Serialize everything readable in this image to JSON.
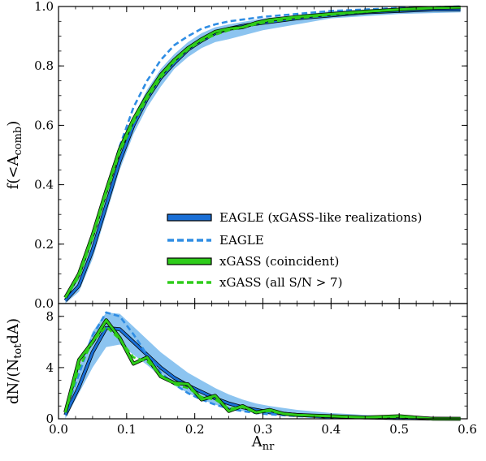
{
  "chart_data": [
    {
      "type": "line",
      "panel": "top",
      "title": "",
      "xlabel": "",
      "ylabel": "f(<A",
      "ylabel_sub": "comb",
      "ylabel_close": ")",
      "xlim": [
        0.0,
        0.6
      ],
      "ylim": [
        0.0,
        1.0
      ],
      "xticks": [
        "0.0",
        "0.1",
        "0.2",
        "0.3",
        "0.4",
        "0.5",
        "0.6"
      ],
      "yticks": [
        "0.0",
        "0.2",
        "0.4",
        "0.6",
        "0.8",
        "1.0"
      ],
      "legend_position": "lower-right",
      "band": {
        "name": "EAGLE (xGASS-like realizations)",
        "color": "#8cc4f0",
        "x": [
          0.01,
          0.03,
          0.05,
          0.07,
          0.09,
          0.11,
          0.13,
          0.15,
          0.17,
          0.19,
          0.21,
          0.23,
          0.25,
          0.3,
          0.35,
          0.4,
          0.5,
          0.59
        ],
        "lower": [
          0.0,
          0.04,
          0.15,
          0.3,
          0.45,
          0.57,
          0.66,
          0.73,
          0.79,
          0.83,
          0.86,
          0.88,
          0.89,
          0.92,
          0.94,
          0.96,
          0.975,
          0.98
        ],
        "upper": [
          0.03,
          0.09,
          0.22,
          0.37,
          0.52,
          0.63,
          0.72,
          0.79,
          0.84,
          0.88,
          0.91,
          0.93,
          0.94,
          0.96,
          0.97,
          0.985,
          0.995,
          1.0
        ]
      },
      "series": [
        {
          "name": "EAGLE (xGASS-like realizations)",
          "color": "#1a6fd6",
          "style": "solid",
          "x": [
            0.01,
            0.03,
            0.05,
            0.07,
            0.09,
            0.11,
            0.13,
            0.15,
            0.17,
            0.19,
            0.21,
            0.23,
            0.25,
            0.27,
            0.3,
            0.35,
            0.4,
            0.45,
            0.5,
            0.55,
            0.59
          ],
          "y": [
            0.01,
            0.06,
            0.18,
            0.33,
            0.48,
            0.6,
            0.69,
            0.76,
            0.81,
            0.855,
            0.885,
            0.91,
            0.925,
            0.935,
            0.945,
            0.96,
            0.97,
            0.98,
            0.985,
            0.99,
            0.99
          ]
        },
        {
          "name": "EAGLE",
          "color": "#2f8de4",
          "style": "dashed",
          "x": [
            0.01,
            0.03,
            0.05,
            0.07,
            0.09,
            0.11,
            0.13,
            0.15,
            0.17,
            0.19,
            0.21,
            0.23,
            0.25,
            0.3,
            0.35,
            0.4,
            0.45,
            0.5,
            0.55,
            0.59
          ],
          "y": [
            0.02,
            0.1,
            0.22,
            0.38,
            0.53,
            0.66,
            0.75,
            0.82,
            0.87,
            0.9,
            0.925,
            0.94,
            0.95,
            0.965,
            0.975,
            0.985,
            0.99,
            0.995,
            0.998,
            1.0
          ]
        },
        {
          "name": "xGASS (coincident)",
          "color": "#2ecc1a",
          "style": "solid",
          "x": [
            0.01,
            0.03,
            0.05,
            0.07,
            0.09,
            0.11,
            0.13,
            0.15,
            0.17,
            0.19,
            0.21,
            0.23,
            0.25,
            0.27,
            0.29,
            0.31,
            0.35,
            0.4,
            0.45,
            0.5,
            0.55,
            0.59
          ],
          "y": [
            0.02,
            0.1,
            0.23,
            0.38,
            0.52,
            0.62,
            0.7,
            0.77,
            0.82,
            0.86,
            0.89,
            0.915,
            0.925,
            0.93,
            0.945,
            0.955,
            0.965,
            0.975,
            0.983,
            0.99,
            0.995,
            0.997
          ]
        },
        {
          "name": "xGASS (all S/N > 7)",
          "color": "#2ecc1a",
          "style": "dashed",
          "x": [
            0.01,
            0.03,
            0.05,
            0.07,
            0.09,
            0.11,
            0.13,
            0.15,
            0.17,
            0.19,
            0.21,
            0.23,
            0.25,
            0.27,
            0.3,
            0.35,
            0.4,
            0.45,
            0.5,
            0.55,
            0.59
          ],
          "y": [
            0.02,
            0.09,
            0.22,
            0.37,
            0.51,
            0.61,
            0.69,
            0.76,
            0.815,
            0.855,
            0.885,
            0.905,
            0.92,
            0.93,
            0.945,
            0.96,
            0.972,
            0.982,
            0.99,
            0.995,
            0.997
          ]
        }
      ]
    },
    {
      "type": "line",
      "panel": "bottom",
      "title": "",
      "xlabel": "A",
      "xlabel_sub": "nr",
      "ylabel": "dN/(N",
      "ylabel_sub": "tot",
      "ylabel_close": "dA)",
      "xlim": [
        0.0,
        0.6
      ],
      "ylim": [
        0.0,
        9.0
      ],
      "xticks": [
        "0.0",
        "0.1",
        "0.2",
        "0.3",
        "0.4",
        "0.5",
        "0.6"
      ],
      "yticks": [
        "0",
        "4",
        "8"
      ],
      "band": {
        "color": "#8cc4f0",
        "x": [
          0.01,
          0.03,
          0.05,
          0.07,
          0.09,
          0.11,
          0.13,
          0.15,
          0.17,
          0.19,
          0.21,
          0.23,
          0.25,
          0.27,
          0.29,
          0.31,
          0.35,
          0.4,
          0.45,
          0.5,
          0.55,
          0.59
        ],
        "lower": [
          0.0,
          2.0,
          4.0,
          5.6,
          5.8,
          5.0,
          4.2,
          3.3,
          2.6,
          2.0,
          1.5,
          1.1,
          0.8,
          0.6,
          0.45,
          0.35,
          0.2,
          0.1,
          0.05,
          0.0,
          0.0,
          0.0
        ],
        "upper": [
          1.0,
          4.0,
          6.8,
          8.3,
          8.2,
          7.2,
          6.2,
          5.2,
          4.4,
          3.6,
          3.0,
          2.4,
          1.9,
          1.5,
          1.2,
          1.0,
          0.7,
          0.45,
          0.3,
          0.2,
          0.1,
          0.05
        ]
      },
      "series": [
        {
          "name": "EAGLE (xGASS-like realizations)",
          "color": "#1a6fd6",
          "style": "solid",
          "x": [
            0.01,
            0.03,
            0.05,
            0.07,
            0.09,
            0.11,
            0.13,
            0.15,
            0.17,
            0.19,
            0.21,
            0.23,
            0.25,
            0.27,
            0.29,
            0.31,
            0.35,
            0.4,
            0.45,
            0.5,
            0.55,
            0.59
          ],
          "y": [
            0.3,
            2.5,
            5.2,
            7.1,
            7.0,
            6.0,
            5.0,
            4.0,
            3.2,
            2.6,
            2.1,
            1.6,
            1.2,
            0.9,
            0.7,
            0.5,
            0.3,
            0.15,
            0.1,
            0.05,
            0.02,
            0.0
          ]
        },
        {
          "name": "EAGLE",
          "color": "#2f8de4",
          "style": "dashed",
          "x": [
            0.01,
            0.03,
            0.05,
            0.07,
            0.09,
            0.11,
            0.13,
            0.15,
            0.17,
            0.19,
            0.21,
            0.23,
            0.25,
            0.27,
            0.29,
            0.31,
            0.35,
            0.4,
            0.45,
            0.5,
            0.55,
            0.59
          ],
          "y": [
            0.5,
            3.5,
            6.5,
            8.3,
            8.0,
            6.6,
            5.0,
            3.6,
            2.7,
            2.0,
            1.5,
            1.1,
            0.8,
            0.6,
            0.45,
            0.35,
            0.2,
            0.1,
            0.05,
            0.03,
            0.01,
            0.0
          ]
        },
        {
          "name": "xGASS (coincident)",
          "color": "#2ecc1a",
          "style": "solid",
          "x": [
            0.01,
            0.03,
            0.05,
            0.07,
            0.09,
            0.11,
            0.13,
            0.15,
            0.17,
            0.19,
            0.21,
            0.23,
            0.25,
            0.27,
            0.29,
            0.31,
            0.33,
            0.35,
            0.4,
            0.45,
            0.5,
            0.55,
            0.59
          ],
          "y": [
            0.5,
            4.6,
            6.0,
            7.7,
            6.3,
            4.3,
            4.8,
            3.3,
            2.8,
            2.7,
            1.5,
            1.8,
            0.6,
            1.0,
            0.5,
            0.7,
            0.4,
            0.3,
            0.2,
            0.1,
            0.2,
            0.0,
            0.0
          ]
        },
        {
          "name": "xGASS (all S/N > 7)",
          "color": "#2ecc1a",
          "style": "dashed",
          "x": [
            0.01,
            0.03,
            0.05,
            0.07,
            0.09,
            0.11,
            0.13,
            0.15,
            0.17,
            0.19,
            0.21,
            0.23,
            0.25,
            0.27,
            0.29,
            0.31,
            0.33,
            0.35,
            0.4,
            0.45,
            0.5,
            0.55,
            0.59
          ],
          "y": [
            0.5,
            4.0,
            6.0,
            7.2,
            6.2,
            4.8,
            4.5,
            3.4,
            2.7,
            2.4,
            1.7,
            1.5,
            0.8,
            0.9,
            0.5,
            0.6,
            0.4,
            0.3,
            0.2,
            0.1,
            0.15,
            0.0,
            0.0
          ]
        }
      ]
    }
  ]
}
